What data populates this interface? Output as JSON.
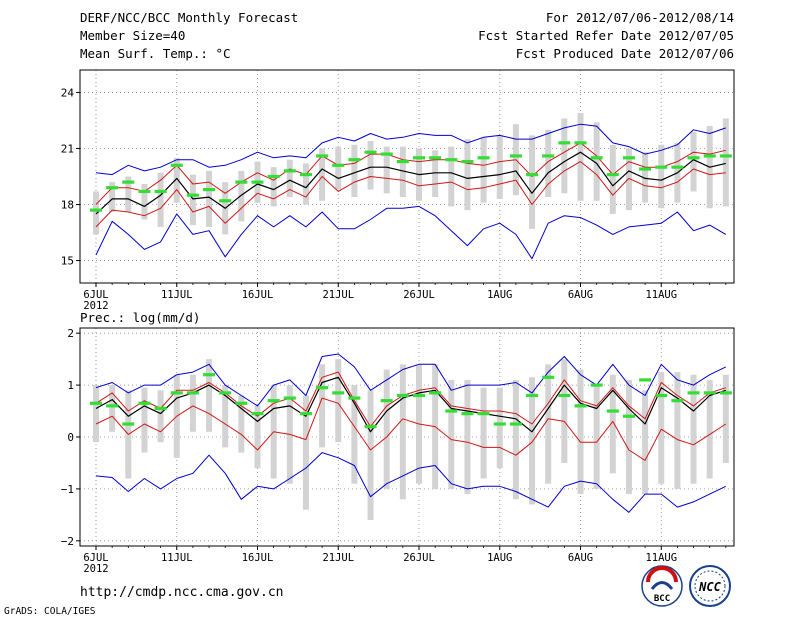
{
  "header": {
    "title": "DERF/NCC/BCC Monthly Forecast",
    "member_size": "Member Size=40",
    "variable": "Mean Surf. Temp.: °C",
    "period": "For 2012/07/06-2012/08/14",
    "refer_date": "Fcst Started Refer Date 2012/07/05",
    "produced_date": "Fcst Produced Date 2012/07/06"
  },
  "colors": {
    "frame": "#000000",
    "box": "#d3d3d3",
    "mean": "#000000",
    "spread": "#d01818",
    "extreme": "#0000cc",
    "observed": "#33dd33",
    "grid": "#888888"
  },
  "chart_data": [
    {
      "type": "line",
      "name": "temperature",
      "title": "Mean Surf. Temp.: °C",
      "ylabel": "°C",
      "ylim": [
        13.8,
        25.2
      ],
      "yticks": [
        15,
        18,
        21,
        24
      ],
      "ytick_labels": [
        "15",
        "18",
        "21",
        "24"
      ],
      "xticks": [
        "6JUL",
        "11JUL",
        "16JUL",
        "21JUL",
        "26JUL",
        "1AUG",
        "6AUG",
        "11AUG"
      ],
      "year_label": "2012",
      "days": 40,
      "ens_mean": [
        17.5,
        18.3,
        18.3,
        17.9,
        18.5,
        19.4,
        18.3,
        18.4,
        17.8,
        18.5,
        19.1,
        18.8,
        19.3,
        18.9,
        19.9,
        19.4,
        19.7,
        20.0,
        20.0,
        19.8,
        19.6,
        19.7,
        19.7,
        19.4,
        19.5,
        19.6,
        19.8,
        18.6,
        19.7,
        20.3,
        20.8,
        20.2,
        19.0,
        19.8,
        19.4,
        19.3,
        19.7,
        20.4,
        20.0,
        20.2
      ],
      "upper_line": [
        18.0,
        18.9,
        18.9,
        18.7,
        19.3,
        20.1,
        19.1,
        19.2,
        18.6,
        19.2,
        19.7,
        19.3,
        19.9,
        19.6,
        20.6,
        20.1,
        20.2,
        20.7,
        20.7,
        20.4,
        20.3,
        20.4,
        20.4,
        20.2,
        20.1,
        20.3,
        20.4,
        19.5,
        20.3,
        20.8,
        21.3,
        20.6,
        19.6,
        20.3,
        20.0,
        20.0,
        20.3,
        20.8,
        20.7,
        20.9
      ],
      "lower_line": [
        16.8,
        17.7,
        17.6,
        17.4,
        17.8,
        18.8,
        17.6,
        17.9,
        17.0,
        17.8,
        18.6,
        18.3,
        18.8,
        18.4,
        19.5,
        18.7,
        19.2,
        19.5,
        19.4,
        19.3,
        19.0,
        19.1,
        19.2,
        18.8,
        18.9,
        19.1,
        19.3,
        18.0,
        19.1,
        19.8,
        20.3,
        19.6,
        18.5,
        19.4,
        19.0,
        18.9,
        19.2,
        19.9,
        19.6,
        19.7
      ],
      "max_line": [
        19.7,
        19.6,
        20.1,
        19.8,
        20.0,
        20.4,
        20.4,
        20.0,
        20.1,
        20.4,
        20.8,
        20.5,
        20.6,
        20.5,
        21.3,
        21.6,
        21.4,
        21.8,
        21.5,
        21.6,
        21.8,
        21.7,
        21.7,
        21.3,
        21.6,
        21.7,
        21.5,
        21.5,
        21.8,
        22.1,
        22.3,
        22.2,
        21.3,
        21.1,
        20.7,
        20.9,
        21.2,
        22.0,
        21.8,
        22.1
      ],
      "min_line": [
        15.3,
        17.1,
        16.4,
        15.6,
        16.0,
        17.5,
        16.4,
        16.6,
        15.2,
        16.4,
        17.4,
        16.8,
        17.4,
        16.8,
        17.6,
        16.7,
        16.7,
        17.2,
        17.8,
        17.8,
        17.9,
        17.4,
        16.6,
        15.8,
        16.7,
        17.0,
        16.4,
        15.1,
        17.0,
        17.4,
        17.3,
        16.9,
        16.4,
        16.8,
        16.9,
        17.0,
        17.6,
        16.6,
        16.9,
        16.4
      ],
      "box_high": [
        18.7,
        19.2,
        19.5,
        19.1,
        19.7,
        20.5,
        19.6,
        19.8,
        19.2,
        19.8,
        20.3,
        20.0,
        20.4,
        20.2,
        21.0,
        21.1,
        21.2,
        21.4,
        21.1,
        21.1,
        21.0,
        20.9,
        21.1,
        21.5,
        21.6,
        21.7,
        22.3,
        21.7,
        22.0,
        22.6,
        22.9,
        22.4,
        21.2,
        21.0,
        20.8,
        21.2,
        21.3,
        21.9,
        22.2,
        22.6
      ],
      "box_low": [
        16.4,
        17.6,
        17.6,
        17.2,
        16.8,
        18.1,
        16.9,
        16.8,
        16.4,
        17.1,
        18.1,
        17.9,
        18.4,
        18.0,
        18.2,
        18.8,
        18.4,
        18.8,
        18.6,
        18.4,
        18.2,
        18.4,
        17.9,
        17.7,
        18.1,
        18.3,
        18.5,
        16.7,
        18.4,
        18.6,
        18.2,
        18.2,
        17.5,
        17.7,
        18.1,
        17.8,
        18.1,
        18.7,
        17.8,
        17.9
      ],
      "observed": [
        17.7,
        18.9,
        19.2,
        18.7,
        18.7,
        20.1,
        18.5,
        18.8,
        18.2,
        19.2,
        19.2,
        19.5,
        19.8,
        19.6,
        20.6,
        20.1,
        20.4,
        20.8,
        20.7,
        20.3,
        20.5,
        20.5,
        20.4,
        20.3,
        20.5,
        null,
        20.6,
        19.6,
        20.6,
        21.3,
        21.3,
        20.5,
        19.6,
        20.5,
        19.9,
        20.0,
        20.0,
        20.5,
        20.6,
        20.6
      ]
    },
    {
      "type": "line",
      "name": "precipitation",
      "title": "Prec.: log(mm/d)",
      "ylabel": "log(mm/d)",
      "ylim": [
        -2.1,
        2.1
      ],
      "yticks": [
        -2,
        -1,
        0,
        1,
        2
      ],
      "ytick_labels": [
        "−2",
        "−1",
        "0",
        "1",
        "2"
      ],
      "xticks": [
        "6JUL",
        "11JUL",
        "16JUL",
        "21JUL",
        "26JUL",
        "1AUG",
        "6AUG",
        "11AUG"
      ],
      "year_label": "2012",
      "days": 40,
      "ens_mean": [
        0.55,
        0.72,
        0.4,
        0.6,
        0.45,
        0.75,
        0.85,
        1.0,
        0.8,
        0.55,
        0.3,
        0.55,
        0.6,
        0.4,
        1.05,
        1.15,
        0.65,
        0.1,
        0.5,
        0.75,
        0.85,
        0.9,
        0.55,
        0.5,
        0.45,
        0.4,
        0.35,
        0.1,
        0.55,
        1.0,
        0.65,
        0.55,
        0.9,
        0.55,
        0.25,
        0.95,
        0.75,
        0.5,
        0.8,
        0.9
      ],
      "upper_line": [
        0.65,
        0.85,
        0.5,
        0.7,
        0.55,
        0.9,
        0.9,
        1.05,
        0.85,
        0.6,
        0.4,
        0.65,
        0.75,
        0.5,
        1.15,
        1.25,
        0.7,
        0.2,
        0.6,
        0.8,
        0.9,
        0.95,
        0.6,
        0.55,
        0.5,
        0.5,
        0.45,
        0.25,
        0.65,
        1.1,
        0.7,
        0.6,
        0.95,
        0.6,
        0.35,
        1.05,
        0.8,
        0.6,
        0.85,
        0.95
      ],
      "lower_line": [
        0.25,
        0.4,
        0.05,
        0.25,
        0.1,
        0.4,
        0.6,
        0.45,
        0.25,
        0.05,
        -0.25,
        0.1,
        0.05,
        -0.05,
        0.75,
        0.65,
        0.2,
        -0.25,
        0.0,
        0.35,
        0.25,
        0.2,
        -0.05,
        -0.1,
        -0.2,
        -0.2,
        -0.35,
        -0.1,
        0.35,
        0.3,
        -0.1,
        -0.1,
        0.3,
        -0.25,
        -0.45,
        0.15,
        -0.05,
        -0.15,
        0.05,
        0.25
      ],
      "max_line": [
        0.95,
        1.05,
        0.85,
        1.0,
        1.0,
        1.2,
        1.25,
        1.4,
        1.0,
        0.8,
        0.6,
        1.0,
        1.1,
        0.8,
        1.55,
        1.6,
        1.35,
        0.9,
        1.1,
        1.3,
        1.4,
        1.4,
        0.9,
        1.0,
        1.0,
        1.0,
        1.05,
        0.85,
        1.25,
        1.55,
        1.2,
        1.0,
        1.4,
        1.0,
        0.8,
        1.4,
        1.1,
        1.0,
        1.2,
        1.35
      ],
      "min_line": [
        -0.75,
        -0.78,
        -1.05,
        -0.8,
        -1.0,
        -0.8,
        -0.7,
        -0.35,
        -0.7,
        -1.2,
        -0.95,
        -1.0,
        -0.8,
        -0.6,
        -0.3,
        -0.4,
        -0.55,
        -1.15,
        -0.9,
        -0.75,
        -0.6,
        -0.55,
        -0.9,
        -1.0,
        -0.95,
        -0.95,
        -1.05,
        -1.2,
        -1.35,
        -0.95,
        -0.85,
        -0.9,
        -1.2,
        -1.45,
        -1.1,
        -1.1,
        -1.35,
        -1.25,
        -1.1,
        -0.95
      ],
      "box_high": [
        1.0,
        1.0,
        0.9,
        0.95,
        0.9,
        1.2,
        1.2,
        1.5,
        1.0,
        0.8,
        0.6,
        1.0,
        1.0,
        0.8,
        1.4,
        1.5,
        1.0,
        0.9,
        1.3,
        1.4,
        1.4,
        1.4,
        1.1,
        1.1,
        0.95,
        0.95,
        1.1,
        1.15,
        1.4,
        1.5,
        1.3,
        1.0,
        1.2,
        1.1,
        0.9,
        1.25,
        1.25,
        1.2,
        1.1,
        1.2
      ],
      "box_low": [
        -0.1,
        0.1,
        -0.8,
        -0.3,
        -0.1,
        -0.4,
        0.1,
        0.1,
        -0.2,
        -0.3,
        -0.6,
        -0.8,
        -0.9,
        -1.4,
        -0.2,
        -0.1,
        -0.9,
        -1.6,
        -1.0,
        -1.2,
        -0.9,
        -1.0,
        -1.0,
        -1.1,
        -0.8,
        -0.6,
        -1.2,
        -1.3,
        -0.9,
        -0.5,
        -1.1,
        -1.0,
        -0.7,
        -1.1,
        -1.1,
        -0.9,
        -1.0,
        -0.9,
        -0.8,
        -0.5
      ],
      "observed": [
        0.65,
        0.6,
        0.25,
        0.65,
        0.55,
        0.85,
        0.85,
        1.2,
        0.85,
        0.65,
        0.45,
        0.7,
        0.75,
        0.45,
        0.95,
        0.85,
        0.75,
        0.2,
        0.7,
        0.8,
        0.8,
        0.85,
        0.5,
        0.45,
        0.45,
        0.25,
        0.25,
        0.8,
        1.15,
        0.8,
        0.6,
        1.0,
        0.5,
        0.4,
        1.1,
        0.8,
        0.7,
        0.85,
        0.85,
        0.85
      ]
    }
  ],
  "footer": {
    "url": "http://cmdp.ncc.cma.gov.cn",
    "credit": "GrADS: COLA/IGES"
  },
  "logos": {
    "bcc_text": "BCC",
    "ncc_text": "NCC"
  }
}
